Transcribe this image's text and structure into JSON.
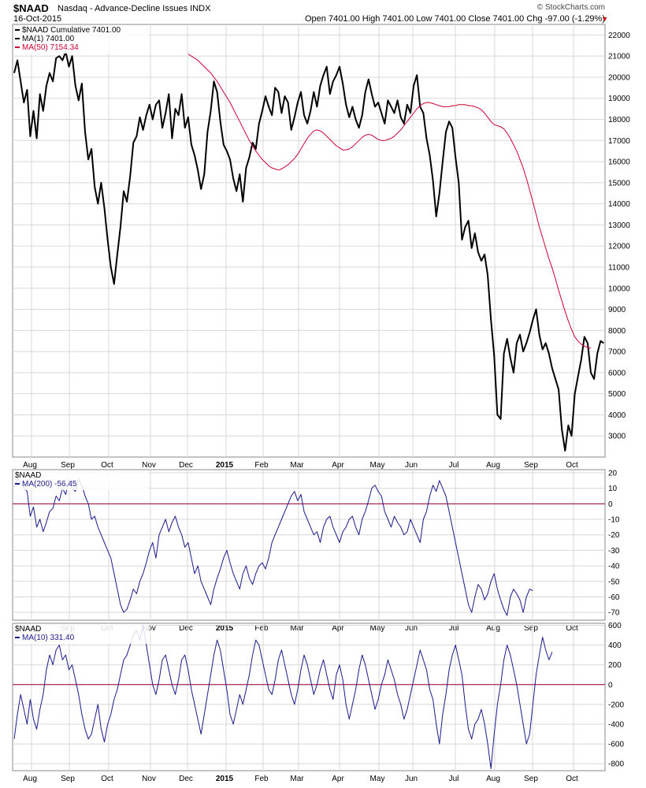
{
  "header": {
    "symbol": "$NAAD",
    "description": "Nasdaq - Advance-Decline Issues INDX",
    "date": "16-Oct-2015",
    "ohlc": "Open 7401.00  High 7401.00  Low 7401.00  Close 7401.00  Chg -97.00 (-1.29%)",
    "credit": "© StockCharts.com",
    "down_arrow": "▼"
  },
  "colors": {
    "price": "#000000",
    "ma50": "#cc0033",
    "indicator": "#1a1a8c",
    "zero_line": "#990033",
    "grid": "#d8d8d8"
  },
  "x_axis": {
    "months": [
      {
        "label": "Aug",
        "bold": false
      },
      {
        "label": "Sep",
        "bold": false
      },
      {
        "label": "Oct",
        "bold": false
      },
      {
        "label": "Nov",
        "bold": false
      },
      {
        "label": "Dec",
        "bold": false
      },
      {
        "label": "2015",
        "bold": true
      },
      {
        "label": "Feb",
        "bold": false
      },
      {
        "label": "Mar",
        "bold": false
      },
      {
        "label": "Apr",
        "bold": false
      },
      {
        "label": "May",
        "bold": false
      },
      {
        "label": "Jun",
        "bold": false
      },
      {
        "label": "Jul",
        "bold": false
      },
      {
        "label": "Aug",
        "bold": false
      },
      {
        "label": "Sep",
        "bold": false
      },
      {
        "label": "Oct",
        "bold": false
      }
    ]
  },
  "chart_data": [
    {
      "type": "line",
      "title": "$NAAD Cumulative",
      "legend": [
        {
          "name": "$NAAD Cumulative 7401.00",
          "color": "#000000"
        },
        {
          "name": "MA(1) 7401.00",
          "color": "#000000"
        },
        {
          "name": "MA(50) 7154.34",
          "color": "#cc0033"
        }
      ],
      "ylim": [
        2000,
        22500
      ],
      "yticks": [
        3000,
        4000,
        5000,
        6000,
        7000,
        8000,
        9000,
        10000,
        11000,
        12000,
        13000,
        14000,
        15000,
        16000,
        17000,
        18000,
        19000,
        20000,
        21000,
        22000
      ],
      "grid": true,
      "series": [
        {
          "name": "MA(1)",
          "color": "#000000",
          "values": [
            20200,
            20800,
            19800,
            18800,
            19400,
            17200,
            18400,
            17100,
            19200,
            18400,
            19600,
            20200,
            19800,
            20900,
            21000,
            20800,
            21200,
            20500,
            21000,
            19600,
            18900,
            19700,
            17400,
            16100,
            16600,
            14800,
            14000,
            15000,
            13800,
            12300,
            11000,
            10200,
            11600,
            12900,
            14600,
            14100,
            15300,
            16900,
            17200,
            18100,
            17500,
            18200,
            18700,
            18000,
            18700,
            18900,
            17600,
            18300,
            19200,
            17100,
            18500,
            18200,
            19200,
            17600,
            18100,
            16800,
            16300,
            15600,
            14700,
            15400,
            17400,
            18400,
            19800,
            19300,
            17900,
            16800,
            16500,
            16100,
            15200,
            14600,
            15400,
            14100,
            15700,
            16200,
            16900,
            16600,
            17800,
            18400,
            19100,
            18600,
            18200,
            19500,
            19300,
            18300,
            19100,
            18800,
            17500,
            18100,
            18800,
            19300,
            18200,
            17800,
            18400,
            19300,
            18600,
            19600,
            20100,
            20500,
            19200,
            19800,
            20100,
            20500,
            19700,
            18700,
            18100,
            18600,
            18000,
            17600,
            18200,
            19300,
            19900,
            19200,
            18600,
            18800,
            18300,
            17800,
            18900,
            18600,
            18300,
            18900,
            18100,
            17800,
            18700,
            18300,
            19600,
            20100,
            18600,
            18300,
            17100,
            16300,
            15100,
            13400,
            14500,
            16000,
            17400,
            17900,
            17600,
            16200,
            15000,
            12300,
            12900,
            13200,
            11900,
            12600,
            11700,
            11300,
            11600,
            10600,
            8500,
            6800,
            4000,
            3800,
            6900,
            7600,
            6700,
            6000,
            7400,
            7800,
            7000,
            7400,
            7900,
            8500,
            9000,
            7800,
            7100,
            7400,
            6900,
            6200,
            5700,
            5200,
            3300,
            2300,
            3500,
            3000,
            5000,
            5800,
            6600,
            7700,
            7400,
            6000,
            5700,
            6900,
            7500,
            7400
          ]
        },
        {
          "name": "MA(50)",
          "color": "#cc0033",
          "values": [
            null,
            null,
            null,
            null,
            null,
            null,
            null,
            null,
            null,
            null,
            21100,
            21000,
            20900,
            20800,
            20650,
            20500,
            20350,
            20200,
            20000,
            19800,
            19550,
            19300,
            19050,
            18800,
            18500,
            18200,
            17900,
            17600,
            17300,
            17000,
            16750,
            16500,
            16300,
            16100,
            15950,
            15800,
            15700,
            15650,
            15600,
            15650,
            15750,
            15850,
            16000,
            16150,
            16350,
            16600,
            16850,
            17100,
            17300,
            17450,
            17500,
            17450,
            17350,
            17200,
            17050,
            16900,
            16750,
            16650,
            16550,
            16550,
            16600,
            16700,
            16850,
            17000,
            17150,
            17250,
            17300,
            17250,
            17150,
            17050,
            17000,
            17000,
            17050,
            17100,
            17200,
            17350,
            17500,
            17700,
            17900,
            18100,
            18300,
            18500,
            18650,
            18750,
            18800,
            18800,
            18750,
            18700,
            18650,
            18600,
            18600,
            18600,
            18650,
            18650,
            18700,
            18700,
            18700,
            18650,
            18650,
            18600,
            18550,
            18450,
            18300,
            18100,
            17900,
            17750,
            17700,
            17650,
            17550,
            17350,
            17100,
            16800,
            16500,
            16100,
            15700,
            15200,
            14650,
            14100,
            13500,
            12900,
            12400,
            11900,
            11400,
            10950,
            10450,
            9900,
            9400,
            8900,
            8450,
            8050,
            7700,
            7500,
            7350,
            7250,
            7200,
            7154
          ]
        }
      ]
    },
    {
      "type": "line",
      "title": "$NAAD",
      "legend": [
        {
          "name": "$NAAD",
          "color": "#000000"
        },
        {
          "name": "MA(200) -56.45",
          "color": "#1a1a8c"
        }
      ],
      "ylim": [
        -75,
        22
      ],
      "yticks": [
        -70,
        -60,
        -50,
        -40,
        -30,
        -20,
        -10,
        0,
        10,
        20
      ],
      "zero_line": 0,
      "series": [
        {
          "name": "MA(200)",
          "color": "#1a1a8c",
          "values": [
            11,
            16,
            14,
            10,
            8,
            -8,
            -2,
            -15,
            -10,
            -18,
            -12,
            -5,
            -3,
            5,
            2,
            10,
            6,
            15,
            10,
            8,
            16,
            12,
            5,
            0,
            -10,
            -8,
            -15,
            -20,
            -25,
            -30,
            -35,
            -45,
            -55,
            -65,
            -70,
            -68,
            -62,
            -55,
            -58,
            -50,
            -45,
            -38,
            -30,
            -25,
            -35,
            -20,
            -15,
            -10,
            -18,
            -12,
            -8,
            -15,
            -20,
            -28,
            -25,
            -35,
            -45,
            -40,
            -50,
            -55,
            -60,
            -65,
            -55,
            -48,
            -42,
            -35,
            -30,
            -38,
            -45,
            -50,
            -55,
            -45,
            -40,
            -48,
            -52,
            -45,
            -40,
            -38,
            -42,
            -35,
            -25,
            -20,
            -15,
            -10,
            -5,
            0,
            5,
            8,
            2,
            6,
            -5,
            -10,
            -15,
            -20,
            -18,
            -25,
            -15,
            -10,
            -8,
            -15,
            -20,
            -25,
            -18,
            -15,
            -10,
            -8,
            -15,
            -20,
            -10,
            -5,
            2,
            10,
            12,
            8,
            5,
            -5,
            -10,
            -15,
            -8,
            -12,
            -15,
            -20,
            -18,
            -10,
            -15,
            -20,
            -25,
            -10,
            -5,
            5,
            12,
            8,
            15,
            10,
            5,
            -5,
            -15,
            -25,
            -35,
            -45,
            -55,
            -65,
            -70,
            -60,
            -52,
            -55,
            -62,
            -58,
            -50,
            -45,
            -55,
            -62,
            -68,
            -72,
            -60,
            -55,
            -58,
            -62,
            -70,
            -60,
            -55,
            -56
          ]
        }
      ]
    },
    {
      "type": "line",
      "title": "$NAAD",
      "legend": [
        {
          "name": "$NAAD",
          "color": "#000000"
        },
        {
          "name": "MA(10) 331.40",
          "color": "#1a1a8c"
        }
      ],
      "ylim": [
        -870,
        620
      ],
      "yticks": [
        -800,
        -600,
        -400,
        -200,
        0,
        200,
        400,
        600
      ],
      "zero_line": 0,
      "series": [
        {
          "name": "MA(10)",
          "color": "#1a1a8c",
          "values": [
            -550,
            -300,
            -100,
            -250,
            -400,
            -150,
            -350,
            -450,
            -250,
            -100,
            150,
            300,
            200,
            350,
            400,
            250,
            300,
            150,
            200,
            50,
            -100,
            -300,
            -450,
            -550,
            -500,
            -350,
            -200,
            -450,
            -580,
            -400,
            -300,
            -150,
            -50,
            100,
            250,
            300,
            400,
            500,
            550,
            450,
            600,
            400,
            200,
            0,
            -100,
            50,
            250,
            300,
            150,
            0,
            -100,
            50,
            250,
            300,
            150,
            -50,
            -200,
            -350,
            -500,
            -300,
            -100,
            100,
            300,
            450,
            350,
            150,
            -50,
            -300,
            -400,
            -250,
            -100,
            -200,
            -50,
            100,
            300,
            450,
            400,
            250,
            100,
            -50,
            -100,
            50,
            250,
            350,
            200,
            50,
            -100,
            -200,
            -50,
            150,
            300,
            200,
            50,
            -100,
            0,
            150,
            250,
            100,
            -50,
            -150,
            100,
            200,
            50,
            -200,
            -350,
            -200,
            -50,
            150,
            300,
            200,
            50,
            -100,
            -250,
            -150,
            0,
            100,
            250,
            150,
            50,
            -100,
            -200,
            -350,
            -250,
            -100,
            50,
            200,
            350,
            250,
            150,
            -50,
            -150,
            -400,
            -600,
            -300,
            -100,
            150,
            300,
            400,
            250,
            100,
            -200,
            -450,
            -550,
            -400,
            -350,
            -250,
            -400,
            -600,
            -850,
            -500,
            -200,
            0,
            250,
            400,
            300,
            150,
            0,
            -200,
            -400,
            -600,
            -500,
            -200,
            100,
            300,
            480,
            350,
            250,
            331
          ]
        }
      ]
    }
  ]
}
